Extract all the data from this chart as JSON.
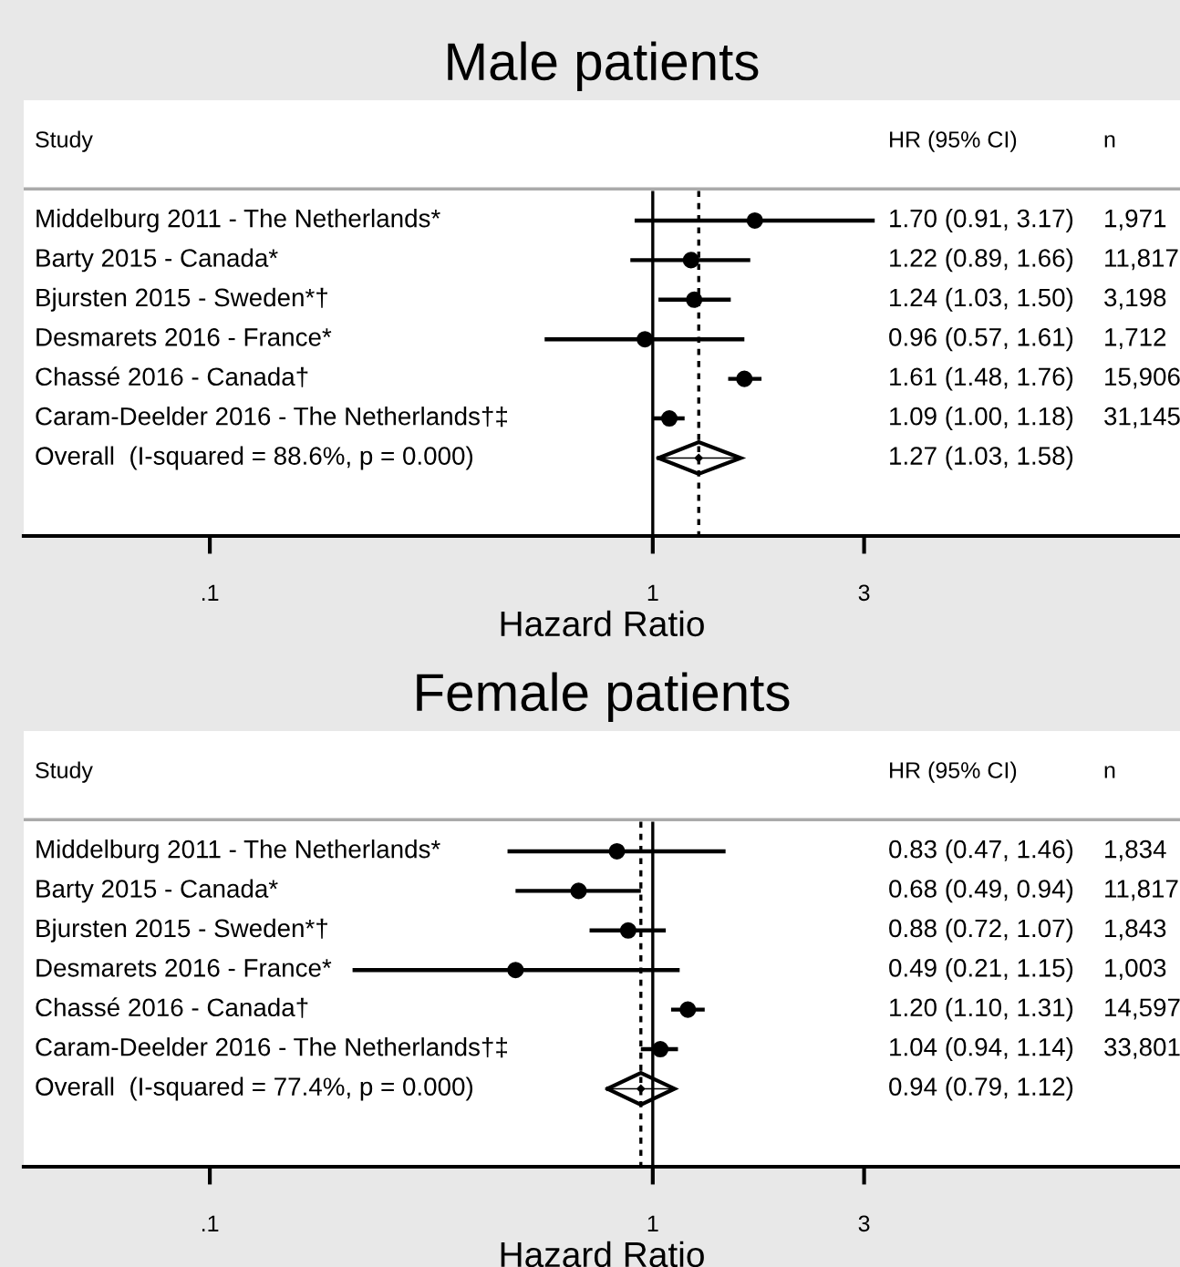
{
  "chart_data": [
    {
      "type": "scatter",
      "title": "Male patients",
      "xlabel": "Hazard Ratio",
      "log": "x",
      "orientation": "horizontal",
      "grid": false,
      "legend": false,
      "categories": [
        "Middelburg 2011 - The Netherlands*",
        "Barty 2015 - Canada*",
        "Bjursten 2015 - Sweden*†",
        "Desmarets 2016 - France*",
        "Chassé 2016 - Canada†",
        "Caram-Deelder 2016 - The Netherlands†‡",
        "Overall  (I-squared = 88.6%, p = 0.000)"
      ],
      "xlim": [
        0.038,
        15.5
      ],
      "xticks": [
        {
          "value": 0.1,
          "label": ".1"
        },
        1,
        3
      ],
      "ref_lines": [
        {
          "axis": "x",
          "value": 1,
          "line_style": "solid",
          "color": "#000000"
        },
        {
          "axis": "x",
          "value": 1.27,
          "line_style": "dashed",
          "color": "#000000"
        }
      ],
      "series": [
        {
          "color": "#000000",
          "marker": "circle",
          "values": [
            1.7,
            1.22,
            1.24,
            0.96,
            1.61,
            1.09,
            null
          ],
          "errors": [
            [
              0.91,
              3.17
            ],
            [
              0.89,
              1.66
            ],
            [
              1.03,
              1.5
            ],
            [
              0.57,
              1.61
            ],
            [
              1.48,
              1.76
            ],
            [
              1.0,
              1.18
            ],
            null
          ]
        },
        {
          "color": "#000000",
          "marker": "diamond",
          "values": [
            null,
            null,
            null,
            null,
            null,
            null,
            1.27
          ],
          "errors": [
            null,
            null,
            null,
            null,
            null,
            null,
            [
              1.03,
              1.58
            ]
          ]
        }
      ],
      "annotations": [
        "Study",
        "HR (95% CI)",
        "n",
        "1.70 (0.91, 3.17)",
        "1.22 (0.89, 1.66)",
        "1.24 (1.03, 1.50)",
        "0.96 (0.57, 1.61)",
        "1.61 (1.48, 1.76)",
        "1.09 (1.00, 1.18)",
        "1.27 (1.03, 1.58)",
        "1,971",
        "11,817",
        "3,198",
        "1,712",
        "15,906",
        "31,145"
      ]
    },
    {
      "type": "scatter",
      "title": "Female patients",
      "xlabel": "Hazard Ratio",
      "log": "x",
      "orientation": "horizontal",
      "grid": false,
      "legend": false,
      "categories": [
        "Middelburg 2011 - The Netherlands*",
        "Barty 2015 - Canada*",
        "Bjursten 2015 - Sweden*†",
        "Desmarets 2016 - France*",
        "Chassé 2016 - Canada†",
        "Caram-Deelder 2016 - The Netherlands†‡",
        "Overall  (I-squared = 77.4%, p = 0.000)"
      ],
      "xlim": [
        0.038,
        15.5
      ],
      "xticks": [
        {
          "value": 0.1,
          "label": ".1"
        },
        1,
        3
      ],
      "ref_lines": [
        {
          "axis": "x",
          "value": 1,
          "line_style": "solid",
          "color": "#000000"
        },
        {
          "axis": "x",
          "value": 0.94,
          "line_style": "dashed",
          "color": "#000000"
        }
      ],
      "series": [
        {
          "color": "#000000",
          "marker": "circle",
          "values": [
            0.83,
            0.68,
            0.88,
            0.49,
            1.2,
            1.04,
            null
          ],
          "errors": [
            [
              0.47,
              1.46
            ],
            [
              0.49,
              0.94
            ],
            [
              0.72,
              1.07
            ],
            [
              0.21,
              1.15
            ],
            [
              1.1,
              1.31
            ],
            [
              0.94,
              1.14
            ],
            null
          ]
        },
        {
          "color": "#000000",
          "marker": "diamond",
          "values": [
            null,
            null,
            null,
            null,
            null,
            null,
            0.94
          ],
          "errors": [
            null,
            null,
            null,
            null,
            null,
            null,
            [
              0.79,
              1.12
            ]
          ]
        }
      ],
      "annotations": [
        "Study",
        "HR (95% CI)",
        "n",
        "0.83 (0.47, 1.46)",
        "0.68 (0.49, 0.94)",
        "0.88 (0.72, 1.07)",
        "0.49 (0.21, 1.15)",
        "1.20 (1.10, 1.31)",
        "1.04 (0.94, 1.14)",
        "0.94 (0.79, 1.12)",
        "1,834",
        "11,817",
        "1,843",
        "1,003",
        "14,597",
        "33,801"
      ]
    }
  ]
}
